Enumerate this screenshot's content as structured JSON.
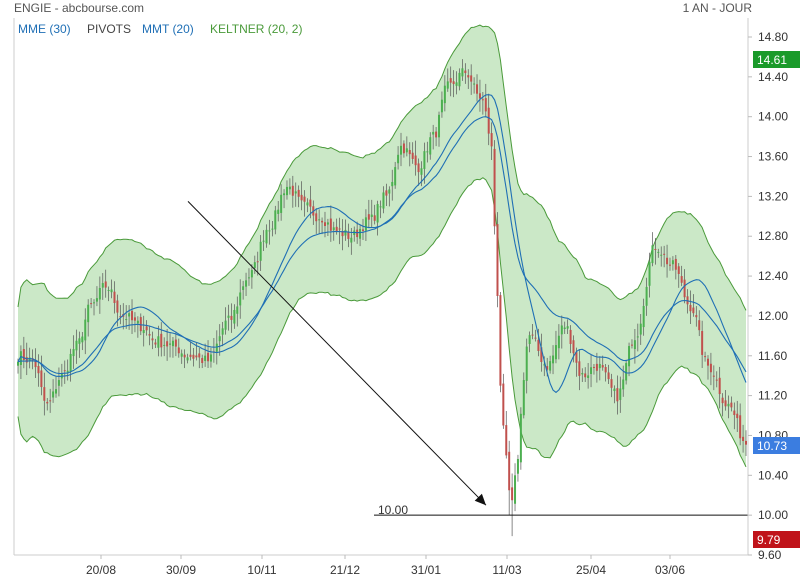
{
  "header": {
    "title": "ENGIE - abcbourse.com",
    "period": "1 AN - JOUR"
  },
  "legend": [
    {
      "label": "MME (30)",
      "color": "#1f6fb5"
    },
    {
      "label": "PIVOTS",
      "color": "#444444"
    },
    {
      "label": "MMT (20)",
      "color": "#1f6fb5"
    },
    {
      "label": "KELTNER (20, 2)",
      "color": "#4a9a3a"
    }
  ],
  "colors": {
    "up": "#4caf50",
    "down": "#c0504d",
    "keltner_fill": "#a9d8a2",
    "keltner_line": "#4a9a3a",
    "ma": "#1f6fb5",
    "high_badge": "#1a9a2a",
    "last_badge": "#3b7de0",
    "low_badge": "#c0131a"
  },
  "badges": {
    "high": "14.61",
    "last": "10.73",
    "low": "9.79"
  },
  "level_line": {
    "value": 10.0,
    "label": "10.00"
  },
  "arrow": {
    "from": {
      "date": "30/09",
      "value": 13.15
    },
    "to": {
      "date": "11/03",
      "value": 10.1
    }
  },
  "chart_data": {
    "type": "candlestick",
    "x_tick_labels": [
      "20/08",
      "30/09",
      "10/11",
      "21/12",
      "31/01",
      "11/03",
      "25/04",
      "03/06"
    ],
    "y_tick_labels": [
      "14.80",
      "14.40",
      "14.00",
      "13.60",
      "13.20",
      "12.80",
      "12.40",
      "12.00",
      "11.60",
      "11.20",
      "10.80",
      "10.40",
      "10.00",
      "9.60"
    ],
    "ylim": [
      9.6,
      14.8
    ],
    "close_anchors": [
      [
        "start",
        11.6
      ],
      [
        "",
        11.55
      ],
      [
        "",
        11.1
      ],
      [
        "",
        11.4
      ],
      [
        "",
        11.7
      ],
      [
        "",
        12.1
      ],
      [
        "20/08",
        12.3
      ],
      [
        "",
        12.0
      ],
      [
        "",
        11.9
      ],
      [
        "",
        11.75
      ],
      [
        "",
        11.7
      ],
      [
        "30/09",
        11.6
      ],
      [
        "",
        11.55
      ],
      [
        "",
        11.95
      ],
      [
        "",
        12.4
      ],
      [
        "10/11",
        12.9
      ],
      [
        "",
        13.3
      ],
      [
        "",
        13.1
      ],
      [
        "",
        13.0
      ],
      [
        "",
        12.85
      ],
      [
        "21/12",
        12.8
      ],
      [
        "",
        12.95
      ],
      [
        "",
        13.2
      ],
      [
        "",
        13.7
      ],
      [
        "",
        13.5
      ],
      [
        "31/01",
        13.8
      ],
      [
        "",
        14.3
      ],
      [
        "",
        14.45
      ],
      [
        "",
        14.2
      ],
      [
        "",
        13.5
      ],
      [
        "11/03",
        10.2
      ],
      [
        "",
        11.8
      ],
      [
        "",
        11.5
      ],
      [
        "",
        11.9
      ],
      [
        "",
        11.4
      ],
      [
        "25/04",
        11.5
      ],
      [
        "",
        11.2
      ],
      [
        "",
        11.8
      ],
      [
        "",
        12.7
      ],
      [
        "03/06",
        12.5
      ],
      [
        "",
        12.1
      ],
      [
        "",
        11.5
      ],
      [
        "",
        11.1
      ],
      [
        "end",
        10.73
      ]
    ]
  }
}
